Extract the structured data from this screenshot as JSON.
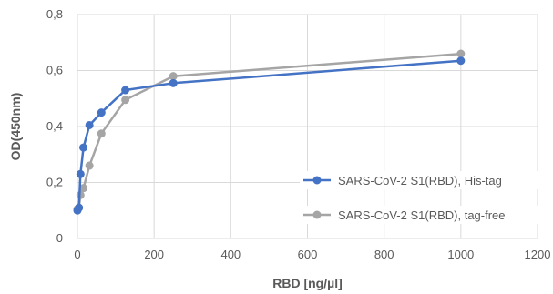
{
  "chart_data": {
    "type": "line",
    "title": "",
    "xlabel": "RBD [ng/µl]",
    "ylabel": "OD(450nm)",
    "xlim": [
      0,
      1200
    ],
    "ylim": [
      0,
      0.8
    ],
    "xticks": [
      0,
      200,
      400,
      600,
      800,
      1000,
      1200
    ],
    "yticks": [
      0,
      0.2,
      0.4,
      0.6,
      0.8
    ],
    "xtick_labels": [
      "0",
      "200",
      "400",
      "600",
      "800",
      "1000",
      "1200"
    ],
    "ytick_labels": [
      "0",
      "0,2",
      "0,4",
      "0,6",
      "0,8"
    ],
    "grid": "horizontal",
    "legend_position": "right",
    "series": [
      {
        "name": "SARS-CoV-2 S1(RBD), His-tag",
        "color": "#4472C4",
        "x": [
          0,
          3.9,
          7.8,
          15.6,
          31.25,
          62.5,
          125,
          250,
          1000
        ],
        "y": [
          0.1,
          0.11,
          0.23,
          0.325,
          0.405,
          0.45,
          0.53,
          0.555,
          0.635
        ]
      },
      {
        "name": "SARS-CoV-2 S1(RBD), tag-free",
        "color": "#A5A5A5",
        "x": [
          0,
          3.9,
          7.8,
          15.6,
          31.25,
          62.5,
          125,
          250,
          1000
        ],
        "y": [
          0.105,
          0.11,
          0.155,
          0.18,
          0.26,
          0.375,
          0.495,
          0.58,
          0.66
        ]
      }
    ]
  }
}
